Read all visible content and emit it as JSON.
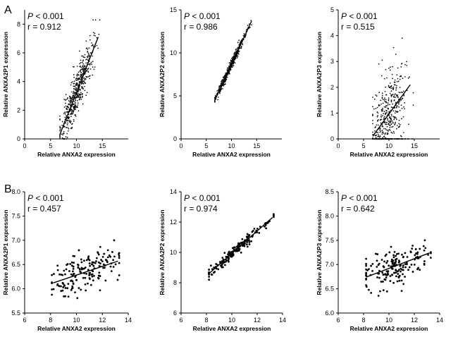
{
  "figure": {
    "panel_labels": [
      "A",
      "B"
    ]
  },
  "chart_data": [
    {
      "id": "A1",
      "type": "scatter",
      "xlabel": "Relative ANXA2 expression",
      "ylabel": "Relative ANXA2P1 expression",
      "xlim": [
        0,
        20
      ],
      "ylim": [
        0,
        9
      ],
      "xticks": [
        0,
        5,
        10,
        15
      ],
      "yticks": [
        0,
        2,
        4,
        6,
        8
      ],
      "p_label": "P",
      "p_value": " < 0.001",
      "r_text": "r = 0.912",
      "fit": {
        "x0": 6.8,
        "y0": 0.3,
        "x1": 14.2,
        "y1": 7.1
      },
      "cloud": {
        "n": 520,
        "x_center": 10.0,
        "x_sd": 1.55,
        "x_min": 6.8,
        "x_max": 14.5,
        "slope": 0.919,
        "intercept": -5.95,
        "resid_sd": 0.75,
        "seed": 11,
        "y_min": 0.0,
        "y_max": 8.3
      }
    },
    {
      "id": "A2",
      "type": "scatter",
      "xlabel": "Relative ANXA2 expression",
      "ylabel": "Relative ANXA2P2 expression",
      "xlim": [
        0,
        20
      ],
      "ylim": [
        0,
        15
      ],
      "xticks": [
        0,
        5,
        10,
        15
      ],
      "yticks": [
        0,
        5,
        10,
        15
      ],
      "p_label": "P",
      "p_value": " < 0.001",
      "r_text": "r = 0.986",
      "fit": {
        "x0": 6.7,
        "y0": 4.5,
        "x1": 14.0,
        "y1": 13.7
      },
      "cloud": {
        "n": 480,
        "x_center": 9.6,
        "x_sd": 1.5,
        "x_min": 6.7,
        "x_max": 14.0,
        "slope": 1.26,
        "intercept": -3.94,
        "resid_sd": 0.28,
        "seed": 23,
        "y_min": 4.3,
        "y_max": 13.9
      }
    },
    {
      "id": "A3",
      "type": "scatter",
      "xlabel": "Relative ANXA2 expression",
      "ylabel": "Relative ANXA2P3 expression",
      "xlim": [
        0,
        20
      ],
      "ylim": [
        0,
        5
      ],
      "xticks": [
        0,
        5,
        10,
        15
      ],
      "yticks": [
        0,
        1,
        2,
        3,
        4,
        5
      ],
      "p_label": "P",
      "p_value": " < 0.001",
      "r_text": "r = 0.515",
      "fit": {
        "x0": 6.8,
        "y0": 0.1,
        "x1": 14.2,
        "y1": 2.1
      },
      "cloud": {
        "n": 420,
        "x_center": 10.0,
        "x_sd": 1.7,
        "x_min": 6.8,
        "x_max": 14.8,
        "slope": 0.27,
        "intercept": -1.74,
        "resid_sd": 0.8,
        "seed": 37,
        "y_min": 0.0,
        "y_max": 4.9,
        "zero_floor_points": 60
      }
    },
    {
      "id": "B1",
      "type": "scatter",
      "xlabel": "Relative ANXA2 expression",
      "ylabel": "Relative ANXA2P1 expression",
      "xlim": [
        6,
        14
      ],
      "ylim": [
        5.5,
        8.0
      ],
      "xticks": [
        6,
        8,
        10,
        12,
        14
      ],
      "yticks": [
        5.5,
        6.0,
        6.5,
        7.0,
        7.5,
        8.0
      ],
      "ytick_decimals": 1,
      "p_label": "P",
      "p_value": " < 0.001",
      "r_text": "r = 0.457",
      "fit": {
        "x0": 8.2,
        "y0": 6.12,
        "x1": 13.2,
        "y1": 6.57
      },
      "cloud": {
        "n": 170,
        "x_center": 10.4,
        "x_sd": 1.35,
        "x_min": 8.1,
        "x_max": 13.3,
        "slope": 0.09,
        "intercept": 5.382,
        "resid_sd": 0.2,
        "seed": 51,
        "y_min": 5.75,
        "y_max": 7.0
      }
    },
    {
      "id": "B2",
      "type": "scatter",
      "xlabel": "Relative ANXA2 expression",
      "ylabel": "Relative ANXA2P2 expression",
      "xlim": [
        6,
        14
      ],
      "ylim": [
        6,
        14
      ],
      "xticks": [
        6,
        8,
        10,
        12,
        14
      ],
      "yticks": [
        6,
        8,
        10,
        12,
        14
      ],
      "p_label": "P",
      "p_value": " < 0.001",
      "r_text": "r = 0.974",
      "fit": {
        "x0": 8.2,
        "y0": 8.6,
        "x1": 13.2,
        "y1": 12.3
      },
      "cloud": {
        "n": 170,
        "x_center": 10.3,
        "x_sd": 1.35,
        "x_min": 8.2,
        "x_max": 13.3,
        "slope": 0.74,
        "intercept": 2.532,
        "resid_sd": 0.18,
        "seed": 67,
        "y_min": 8.2,
        "y_max": 12.6
      }
    },
    {
      "id": "B3",
      "type": "scatter",
      "xlabel": "Relative ANXA2 expression",
      "ylabel": "Relative ANXA2P3 expression",
      "xlim": [
        6,
        14
      ],
      "ylim": [
        6.0,
        8.5
      ],
      "xticks": [
        6,
        8,
        10,
        12,
        14
      ],
      "yticks": [
        6.0,
        6.5,
        7.0,
        7.5,
        8.0,
        8.5
      ],
      "ytick_decimals": 1,
      "p_label": "P",
      "p_value": " < 0.001",
      "r_text": "r = 0.642",
      "fit": {
        "x0": 8.2,
        "y0": 6.74,
        "x1": 13.2,
        "y1": 7.24
      },
      "cloud": {
        "n": 170,
        "x_center": 10.3,
        "x_sd": 1.35,
        "x_min": 8.2,
        "x_max": 13.3,
        "slope": 0.1,
        "intercept": 5.92,
        "resid_sd": 0.18,
        "seed": 89,
        "y_min": 6.35,
        "y_max": 7.5
      }
    }
  ]
}
